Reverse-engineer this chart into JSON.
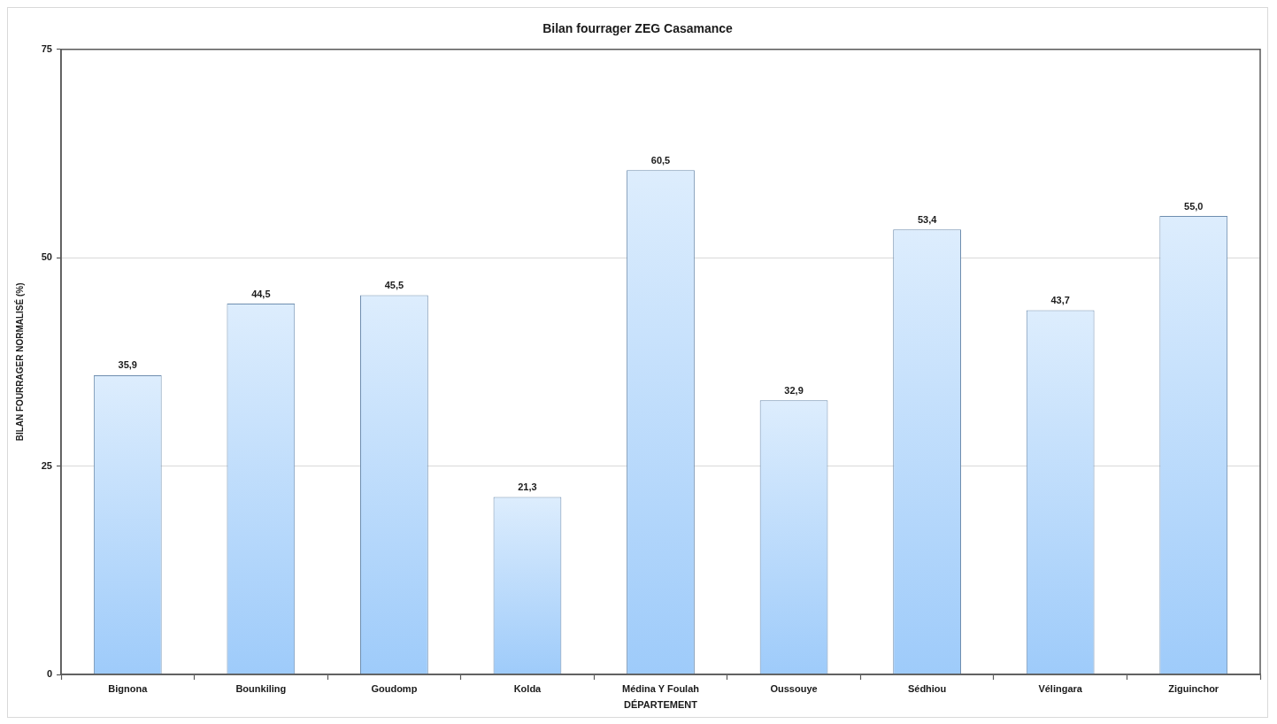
{
  "chart_data": {
    "type": "bar",
    "title": "Bilan fourrager ZEG Casamance",
    "xlabel": "DÉPARTEMENT",
    "ylabel": "BILAN FOURRAGER NORMALISÉ (%)",
    "categories": [
      "Bignona",
      "Bounkiling",
      "Goudomp",
      "Kolda",
      "Médina Y Foulah",
      "Oussouye",
      "Sédhiou",
      "Vélingara",
      "Ziguinchor"
    ],
    "values": [
      35.9,
      44.5,
      45.5,
      21.3,
      60.5,
      32.9,
      53.4,
      43.7,
      55.0
    ],
    "value_labels": [
      "35,9",
      "44,5",
      "45,5",
      "21,3",
      "60,5",
      "32,9",
      "53,4",
      "43,7",
      "55,0"
    ],
    "color": "#9ecbfa",
    "ylim": [
      0,
      75
    ],
    "yticks": [
      0,
      25,
      50,
      75
    ],
    "grid": "y"
  }
}
